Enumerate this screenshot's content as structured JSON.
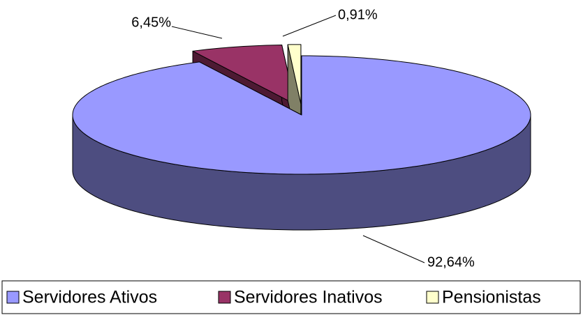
{
  "chart_data": {
    "type": "pie",
    "categories": [
      "Servidores Ativos",
      "Servidores Inativos",
      "Pensionistas"
    ],
    "values": [
      92.64,
      6.45,
      0.91
    ],
    "value_labels": [
      "92,64%",
      "6,45%",
      "0,91%"
    ],
    "colors": [
      "#9999ff",
      "#993366",
      "#ffffcc"
    ]
  }
}
